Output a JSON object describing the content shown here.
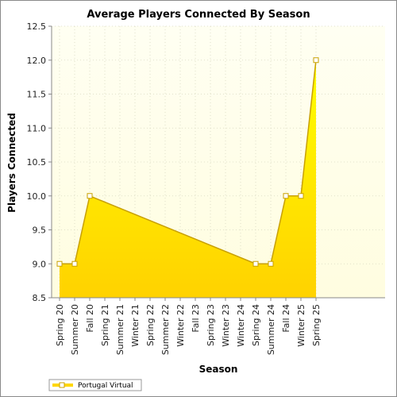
{
  "chart_data": {
    "type": "area",
    "title": "Average Players Connected By Season",
    "xlabel": "Season",
    "ylabel": "Players Connected",
    "categories": [
      "Spring 20",
      "Summer 20",
      "Fall 20",
      "Spring 21",
      "Summer 21",
      "Winter 21",
      "Spring 22",
      "Summer 22",
      "Winter 22",
      "Fall 23",
      "Spring 23",
      "Winter 23",
      "Winter 24",
      "Spring 24",
      "Summer 24",
      "Fall 24",
      "Winter 25",
      "Spring 25"
    ],
    "x_tick_labels": [
      "Spring 20",
      "Summer 20",
      "Fall 20",
      "Spring 21",
      "Summer 21",
      "Winter 21",
      "Spring 22",
      "Summer 22",
      "Winter 22",
      "Fall 23",
      "Spring 23",
      "Winter 23",
      "Winter 24",
      "Spring 24",
      "Summer 24",
      "Fall 24",
      "Winter 25",
      "Spring 25"
    ],
    "series": [
      {
        "name": "Portugal Virtual",
        "points": [
          {
            "x": "Spring 20",
            "y": 9.0
          },
          {
            "x": "Summer 20",
            "y": 9.0
          },
          {
            "x": "Fall 20",
            "y": 10.0
          },
          {
            "x": "Spring 24",
            "y": 9.0
          },
          {
            "x": "Summer 24",
            "y": 9.0
          },
          {
            "x": "Fall 24",
            "y": 10.0
          },
          {
            "x": "Winter 25",
            "y": 10.0
          },
          {
            "x": "Spring 25",
            "y": 12.0
          }
        ]
      }
    ],
    "y_ticks": [
      "8.5",
      "9.0",
      "9.5",
      "10.0",
      "10.5",
      "11.0",
      "11.5",
      "12.0",
      "12.5"
    ],
    "ylim": [
      8.5,
      12.5
    ],
    "grid": true,
    "legend_position": "bottom-left",
    "colors": {
      "fill_top": "#ffff00",
      "fill_bottom": "#ffd700",
      "line": "#c8a000",
      "marker_fill": "#ffffff",
      "plot_background": "#ffffee"
    }
  }
}
